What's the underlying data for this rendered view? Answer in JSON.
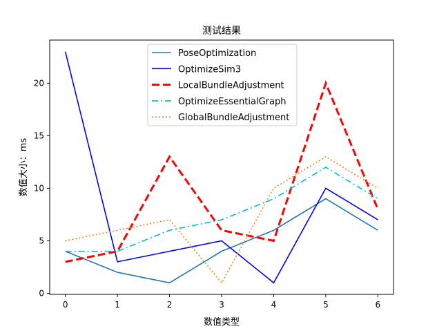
{
  "chart_data": {
    "type": "line",
    "title": "测试结果",
    "xlabel": "数值类型",
    "ylabel": "数值大小：ms",
    "x": [
      0,
      1,
      2,
      3,
      4,
      5,
      6
    ],
    "xticks": [
      "0",
      "1",
      "2",
      "3",
      "4",
      "5",
      "6"
    ],
    "yticks": [
      "0",
      "5",
      "10",
      "15",
      "20"
    ],
    "xlim": [
      -0.3,
      6.3
    ],
    "ylim": [
      -0.1,
      24.1
    ],
    "grid": false,
    "legend_position": "top-center",
    "series": [
      {
        "name": "PoseOptimization",
        "values": [
          4,
          2,
          1,
          4,
          6,
          9,
          6
        ],
        "color": "#1f77b4",
        "style": "solid"
      },
      {
        "name": "OptimizeSim3",
        "values": [
          23,
          3,
          4,
          5,
          1,
          10,
          7
        ],
        "color": "#0000ff",
        "style": "solid"
      },
      {
        "name": "LocalBundleAdjustment",
        "values": [
          3,
          4,
          13,
          6,
          5,
          20,
          8
        ],
        "color": "#ff0000",
        "style": "dashed-thick"
      },
      {
        "name": "OptimizeEssentialGraph",
        "values": [
          4,
          4,
          6,
          7,
          9,
          12,
          9
        ],
        "color": "#00bfbf",
        "style": "dashdot"
      },
      {
        "name": "GlobalBundleAdjustment",
        "values": [
          5,
          6,
          7,
          1,
          10,
          13,
          10
        ],
        "color": "#ff7f0e",
        "style": "dotted"
      }
    ]
  }
}
